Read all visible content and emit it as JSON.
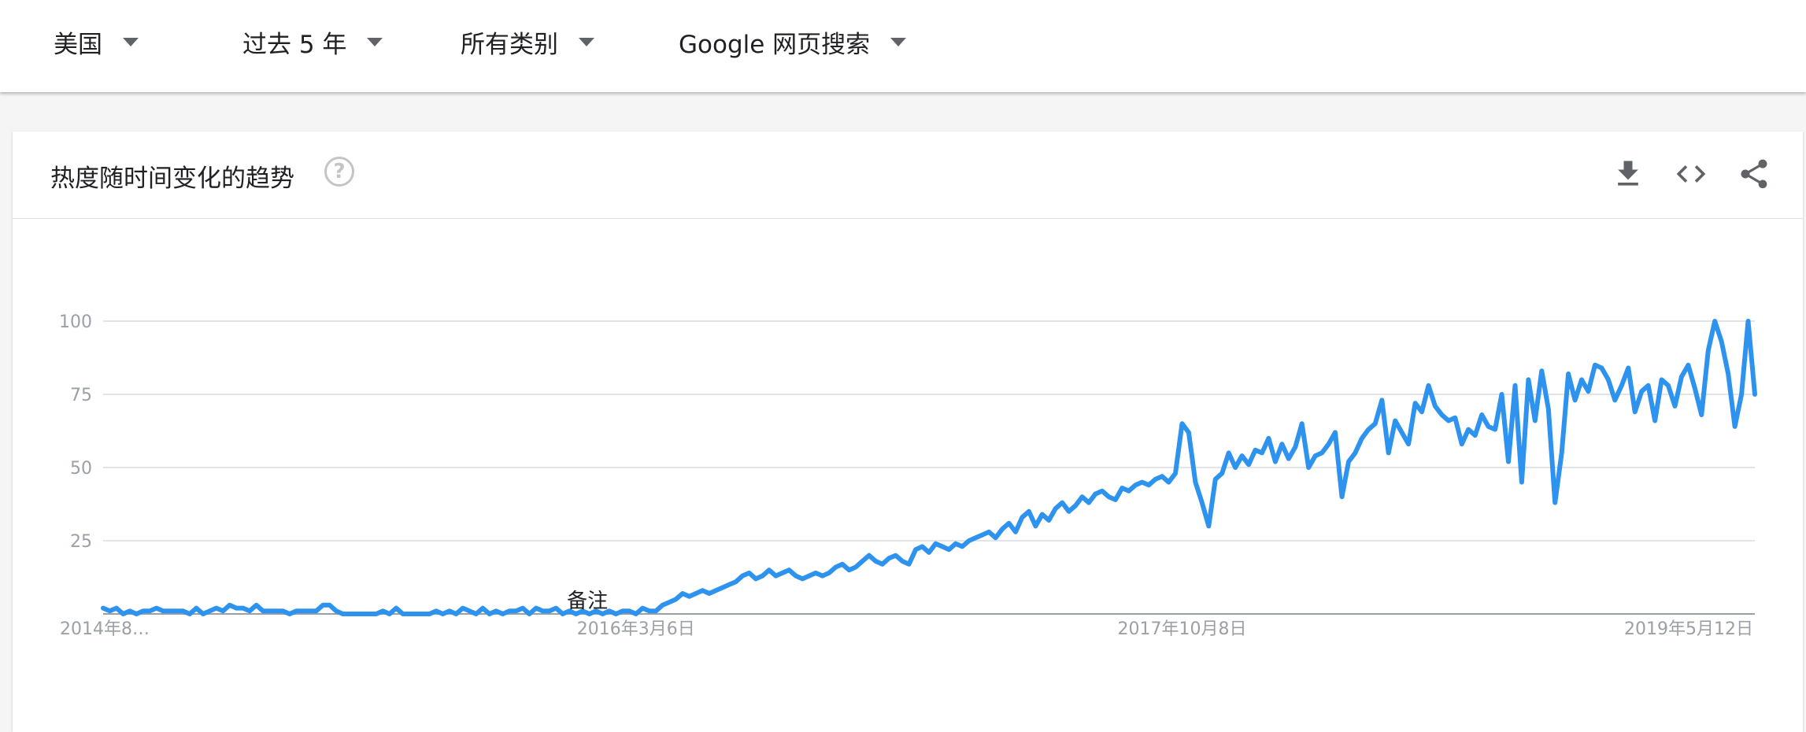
{
  "filters": {
    "region": "美国",
    "time": "过去 5 年",
    "category": "所有类别",
    "search_type": "Google 网页搜索"
  },
  "card": {
    "title": "热度随时间变化的趋势",
    "help_symbol": "?"
  },
  "icons": [
    "download-icon",
    "embed-icon",
    "share-icon"
  ],
  "colors": {
    "line": "#2e93ef",
    "grid": "#dadce0",
    "axis": "#9aa0a6"
  },
  "chart_data": {
    "type": "line",
    "title": "",
    "xlabel": "",
    "ylabel": "",
    "ylim": [
      0,
      100
    ],
    "y_ticks": [
      25,
      50,
      75,
      100
    ],
    "x_tick_labels": [
      {
        "label": "2014年8…",
        "week": 0
      },
      {
        "label": "2016年3月6日",
        "week": 80
      },
      {
        "label": "2017年10月8日",
        "week": 162
      },
      {
        "label": "2019年5月12日",
        "week": 245
      }
    ],
    "annotation": {
      "label": "备注",
      "week": 72
    },
    "grid": true,
    "legend": "none",
    "x_start": "2014年8月",
    "x_end": "2019年8月",
    "series": [
      {
        "values": [
          2,
          1,
          2,
          0,
          1,
          0,
          1,
          1,
          2,
          1,
          1,
          1,
          1,
          0,
          2,
          0,
          1,
          2,
          1,
          3,
          2,
          2,
          1,
          3,
          1,
          1,
          1,
          1,
          0,
          1,
          1,
          1,
          1,
          3,
          3,
          1,
          0,
          0,
          0,
          0,
          0,
          0,
          1,
          0,
          2,
          0,
          0,
          0,
          0,
          0,
          1,
          0,
          1,
          0,
          2,
          1,
          0,
          2,
          0,
          1,
          0,
          1,
          1,
          2,
          0,
          2,
          1,
          1,
          2,
          0,
          1,
          0,
          1,
          0,
          1,
          0,
          1,
          0,
          1,
          1,
          0,
          2,
          1,
          1,
          3,
          4,
          5,
          7,
          6,
          7,
          8,
          7,
          8,
          9,
          10,
          11,
          13,
          14,
          12,
          13,
          15,
          13,
          14,
          15,
          13,
          12,
          13,
          14,
          13,
          14,
          16,
          17,
          15,
          16,
          18,
          20,
          18,
          17,
          19,
          20,
          18,
          17,
          22,
          23,
          21,
          24,
          23,
          22,
          24,
          23,
          25,
          26,
          27,
          28,
          26,
          29,
          31,
          28,
          33,
          35,
          30,
          34,
          32,
          36,
          38,
          35,
          37,
          40,
          38,
          41,
          42,
          40,
          39,
          43,
          42,
          44,
          45,
          44,
          46,
          47,
          45,
          48,
          65,
          62,
          45,
          38,
          30,
          46,
          48,
          55,
          50,
          54,
          51,
          56,
          55,
          60,
          52,
          58,
          53,
          57,
          65,
          50,
          54,
          55,
          58,
          62,
          40,
          52,
          55,
          60,
          63,
          65,
          73,
          55,
          66,
          62,
          58,
          72,
          69,
          78,
          71,
          68,
          66,
          67,
          58,
          63,
          61,
          68,
          64,
          63,
          75,
          52,
          78,
          45,
          80,
          66,
          83,
          70,
          38,
          55,
          82,
          73,
          80,
          76,
          85,
          84,
          80,
          73,
          78,
          84,
          69,
          76,
          78,
          66,
          80,
          78,
          71,
          81,
          85,
          77,
          68,
          90,
          100,
          93,
          82,
          64,
          75,
          100,
          75
        ]
      }
    ]
  }
}
